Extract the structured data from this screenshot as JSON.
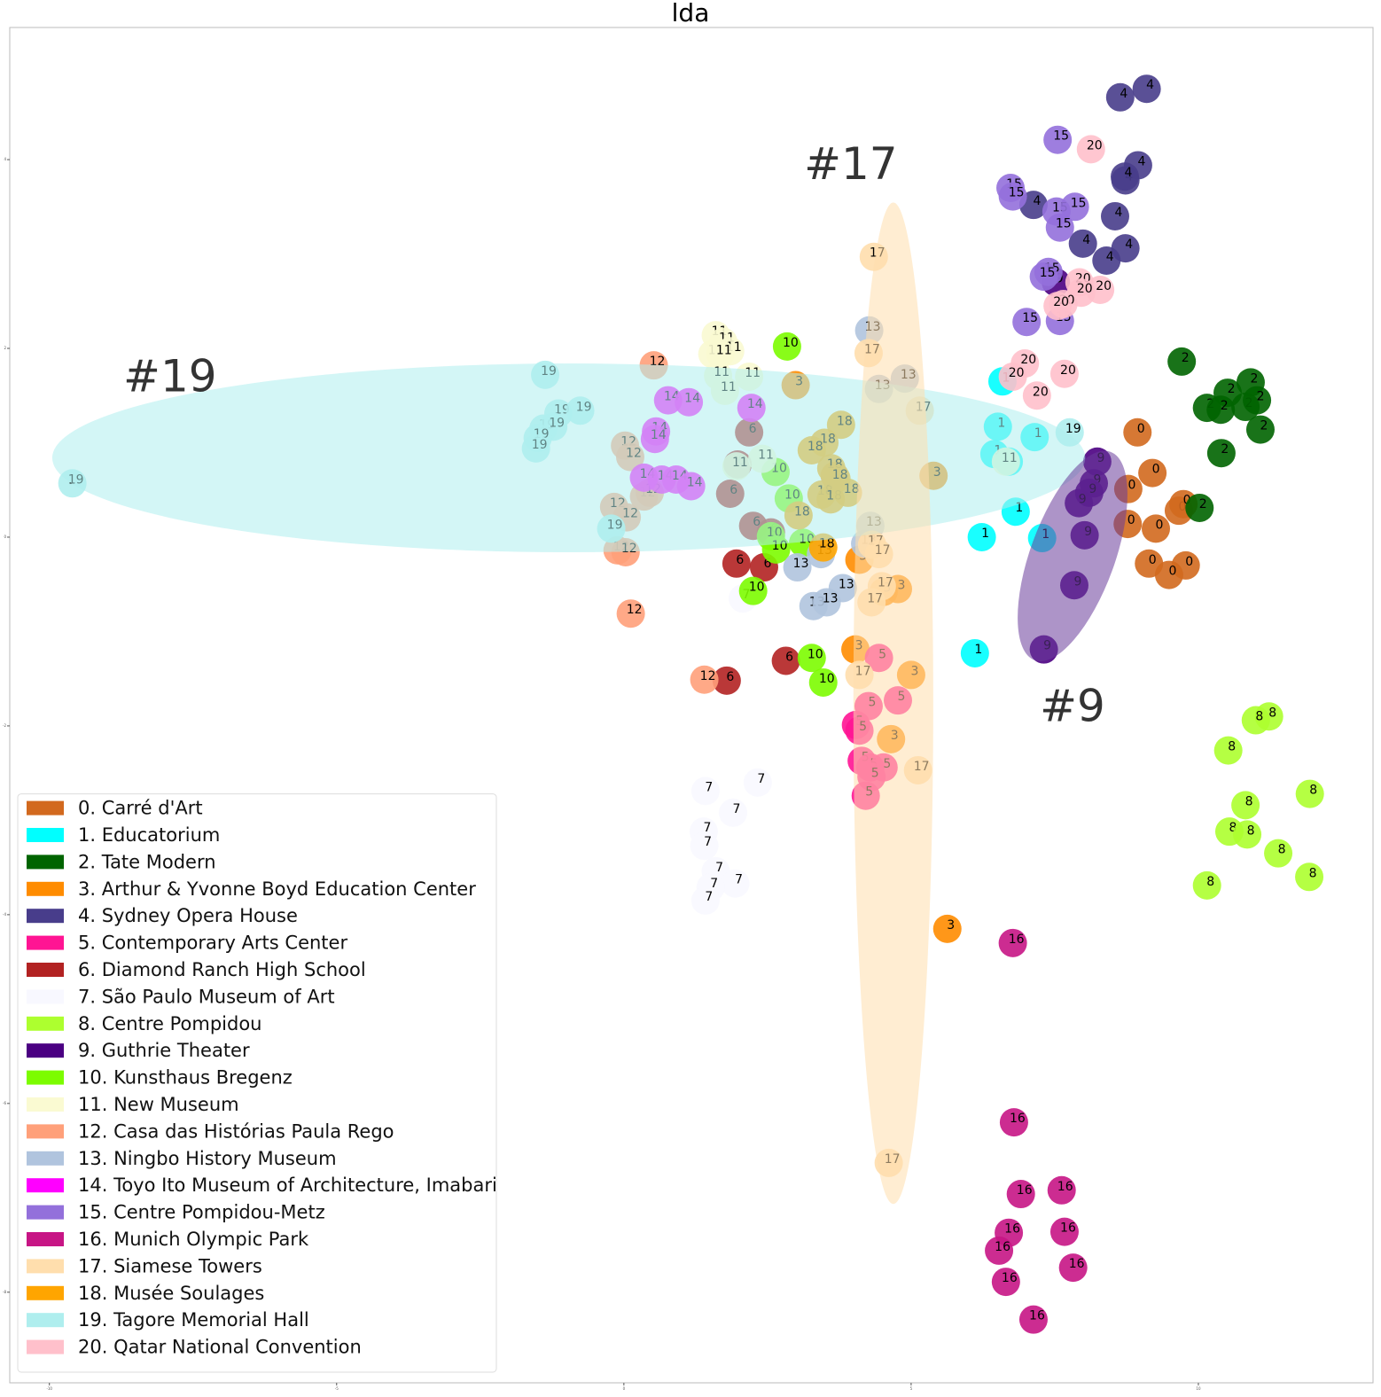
{
  "chart_data": {
    "type": "scatter",
    "title": "lda",
    "xlim": [
      -10.69,
      13.04
    ],
    "ylim": [
      -8.96,
      5.4
    ],
    "xticks": [
      -10,
      -5,
      0,
      5,
      10
    ],
    "yticks": [
      4,
      2,
      0,
      -2,
      -4,
      -6,
      -8
    ],
    "legend": "lower left",
    "series": [
      {
        "name": "0. Carré d'Art",
        "label": "0",
        "color": "#d2691e",
        "x": [
          8.94,
          9.2,
          8.78,
          9.66,
          9.74,
          8.77,
          9.26,
          9.14,
          9.78,
          9.49
        ],
        "y": [
          1.11,
          0.68,
          0.51,
          0.28,
          0.35,
          0.14,
          0.09,
          -0.28,
          -0.3,
          -0.4
        ]
      },
      {
        "name": "1. Educatorium",
        "label": "1",
        "color": "#00ffff",
        "x": [
          6.59,
          6.51,
          7.15,
          6.45,
          6.7,
          6.82,
          6.23,
          7.28,
          6.11
        ],
        "y": [
          1.65,
          1.17,
          1.06,
          0.88,
          0.8,
          0.27,
          0.0,
          -0.01,
          -1.23
        ]
      },
      {
        "name": "2. Tate Modern",
        "label": "2",
        "color": "#006400",
        "x": [
          9.71,
          10.51,
          10.91,
          10.15,
          10.39,
          10.82,
          11.02,
          11.08,
          10.4,
          10.02
        ],
        "y": [
          1.86,
          1.53,
          1.64,
          1.37,
          1.35,
          1.38,
          1.45,
          1.14,
          0.89,
          0.31
        ]
      },
      {
        "name": "3. Arthur & Yvonne Boyd Education Center",
        "label": "3",
        "color": "#ff8c00",
        "x": [
          2.99,
          5.39,
          3.67,
          4.1,
          4.77,
          4.52,
          4.03,
          5.0,
          4.65,
          5.63
        ],
        "y": [
          1.61,
          0.65,
          0.65,
          -0.24,
          -0.55,
          -0.58,
          -1.19,
          -1.46,
          -2.14,
          -4.15
        ]
      },
      {
        "name": "4. Sydney Opera House",
        "label": "4",
        "color": "#483d8b",
        "x": [
          8.64,
          9.1,
          8.95,
          8.73,
          8.72,
          7.13,
          8.55,
          7.99,
          8.73,
          8.4
        ],
        "y": [
          4.66,
          4.75,
          3.94,
          3.78,
          3.82,
          3.52,
          3.4,
          3.11,
          3.06,
          2.93
        ]
      },
      {
        "name": "5. Contemporary Arts Center",
        "label": "5",
        "color": "#ff1493",
        "x": [
          4.44,
          4.26,
          4.77,
          4.04,
          4.1,
          4.14,
          4.29,
          4.52,
          4.31,
          4.21
        ],
        "y": [
          -1.28,
          -1.79,
          -1.73,
          -1.99,
          -2.05,
          -2.37,
          -2.44,
          -2.44,
          -2.54,
          -2.74
        ]
      },
      {
        "name": "6. Diamond Ranch High School",
        "label": "6",
        "color": "#b22222",
        "x": [
          2.18,
          1.98,
          1.85,
          2.25,
          2.56,
          1.96,
          2.44,
          2.82,
          1.79
        ],
        "y": [
          1.11,
          0.77,
          0.46,
          0.12,
          0.05,
          -0.28,
          -0.32,
          -1.31,
          -1.52
        ]
      },
      {
        "name": "7. São Paulo Museum of Art",
        "label": "7",
        "color": "#f8f8ff",
        "x": [
          2.07,
          1.42,
          2.33,
          1.9,
          1.39,
          1.4,
          1.6,
          1.94,
          1.51,
          1.42
        ],
        "y": [
          -0.65,
          -2.69,
          -2.6,
          -2.92,
          -3.12,
          -3.27,
          -3.54,
          -3.67,
          -3.71,
          -3.85
        ]
      },
      {
        "name": "8. Centre Pompidou",
        "label": "8",
        "color": "#adff2f",
        "x": [
          11.23,
          11.0,
          10.52,
          11.94,
          10.82,
          10.54,
          10.85,
          11.39,
          11.93,
          10.15
        ],
        "y": [
          -1.9,
          -1.94,
          -2.26,
          -2.72,
          -2.84,
          -3.12,
          -3.15,
          -3.35,
          -3.6,
          -3.69
        ]
      },
      {
        "name": "9. Guthrie Theater",
        "label": "9",
        "color": "#4b0082",
        "x": [
          8.24,
          8.18,
          8.1,
          7.92,
          8.02,
          7.84,
          7.31,
          7.52
        ],
        "y": [
          0.8,
          0.57,
          0.47,
          0.36,
          0.02,
          -0.51,
          -1.19,
          2.7
        ]
      },
      {
        "name": "10. Kunsthaus Bregenz",
        "label": "10",
        "color": "#7cfc00",
        "x": [
          2.84,
          2.64,
          2.87,
          2.56,
          3.12,
          2.65,
          2.25,
          3.27,
          3.47
        ],
        "y": [
          2.02,
          0.69,
          0.41,
          0.01,
          -0.06,
          -0.13,
          -0.57,
          -1.28,
          -1.54
        ]
      },
      {
        "name": "11. New Museum",
        "label": "11",
        "color": "#fafad2",
        "x": [
          1.6,
          1.73,
          1.85,
          1.54,
          1.68,
          1.64,
          2.18,
          1.76,
          2.41,
          1.96,
          6.65
        ],
        "y": [
          2.14,
          2.07,
          1.97,
          1.94,
          1.94,
          1.71,
          1.7,
          1.55,
          0.83,
          0.75,
          0.8
        ]
      },
      {
        "name": "12. Casa das Histórias Paula Rego",
        "label": "12",
        "color": "#ffa07a",
        "x": [
          0.52,
          0.02,
          0.11,
          0.35,
          -0.17,
          0.05,
          -0.11,
          0.03,
          0.12,
          1.4,
          0.45
        ],
        "y": [
          1.82,
          0.97,
          0.85,
          0.43,
          0.32,
          0.21,
          -0.14,
          -0.16,
          -0.81,
          -1.51,
          0.47
        ]
      },
      {
        "name": "13. Ningbo History Museum",
        "label": "13",
        "color": "#b0c4de",
        "x": [
          4.27,
          4.89,
          4.44,
          4.29,
          4.2,
          3.43,
          3.02,
          3.81,
          3.3,
          3.53
        ],
        "y": [
          2.19,
          1.68,
          1.57,
          0.12,
          -0.07,
          -0.18,
          -0.32,
          -0.54,
          -0.73,
          -0.69
        ]
      },
      {
        "name": "14. Toyo Ito Museum of Architecture, Imabari",
        "label": "14",
        "color": "#ff00ff",
        "x": [
          0.77,
          1.13,
          2.22,
          0.56,
          0.54,
          0.35,
          0.66,
          0.91,
          1.17
        ],
        "y": [
          1.45,
          1.43,
          1.37,
          1.12,
          1.04,
          0.63,
          0.61,
          0.61,
          0.54
        ]
      },
      {
        "name": "15. Centre Pompidou-Metz",
        "label": "15",
        "color": "#9370db",
        "x": [
          7.55,
          6.73,
          6.77,
          7.53,
          7.85,
          7.59,
          7.39,
          7.31,
          7.01,
          7.59
        ],
        "y": [
          4.21,
          3.7,
          3.61,
          3.45,
          3.5,
          3.28,
          2.81,
          2.76,
          2.28,
          2.29
        ]
      },
      {
        "name": "16. Munich Olympic Park",
        "label": "16",
        "color": "#c71585",
        "x": [
          6.77,
          6.79,
          6.91,
          7.62,
          6.7,
          7.67,
          6.53,
          7.82,
          6.65,
          7.13
        ],
        "y": [
          -4.3,
          -6.2,
          -6.96,
          -6.92,
          -7.37,
          -7.36,
          -7.56,
          -7.74,
          -7.89,
          -8.29
        ]
      },
      {
        "name": "17. Siamese Towers",
        "label": "17",
        "color": "#ffdead",
        "x": [
          4.35,
          4.26,
          5.15,
          4.32,
          4.44,
          4.49,
          4.31,
          4.1,
          5.12,
          4.61
        ],
        "y": [
          2.97,
          1.95,
          1.34,
          -0.08,
          -0.18,
          -0.52,
          -0.69,
          -1.46,
          -2.47,
          -6.63
        ]
      },
      {
        "name": "18. Musée Soulages",
        "label": "18",
        "color": "#ffa500",
        "x": [
          3.78,
          3.49,
          3.27,
          3.61,
          3.7,
          3.44,
          3.6,
          3.9,
          3.04,
          3.47
        ],
        "y": [
          1.19,
          1.0,
          0.92,
          0.73,
          0.62,
          0.45,
          0.4,
          0.47,
          0.23,
          -0.11
        ]
      },
      {
        "name": "19. Tagore Memorial Hall",
        "label": "19",
        "color": "#afeeee",
        "x": [
          -1.37,
          -1.14,
          -0.76,
          -1.4,
          -1.23,
          -1.5,
          -1.53,
          -9.6,
          -0.22,
          7.76
        ],
        "y": [
          1.72,
          1.31,
          1.34,
          1.15,
          1.17,
          1.05,
          0.94,
          0.57,
          0.09,
          1.11
        ]
      },
      {
        "name": "20. Qatar National Convention",
        "label": "20",
        "color": "#ffc0cb",
        "x": [
          8.13,
          7.93,
          8.29,
          7.96,
          7.65,
          7.55,
          6.98,
          6.77,
          7.67,
          7.19
        ],
        "y": [
          4.11,
          2.7,
          2.62,
          2.59,
          2.47,
          2.45,
          1.84,
          1.7,
          1.73,
          1.5
        ]
      }
    ],
    "ellipses": [
      {
        "text": "#19",
        "color": "#afeeee",
        "x": -0.96,
        "y": 0.84,
        "width": 17.98,
        "height": 2.0,
        "angle": 0,
        "text_x": -7.9,
        "text_y": 1.67
      },
      {
        "text": "#17",
        "color": "#ffdead",
        "x": 4.69,
        "y": -1.76,
        "width": 1.39,
        "height": 10.61,
        "angle": 0,
        "text_x": 3.95,
        "text_y": 3.92
      },
      {
        "text": "#9",
        "color": "#6a3d9a",
        "x": 7.81,
        "y": -0.2,
        "width": 1.47,
        "height": 2.35,
        "angle": 20,
        "text_x": 7.81,
        "text_y": -1.82
      }
    ]
  }
}
